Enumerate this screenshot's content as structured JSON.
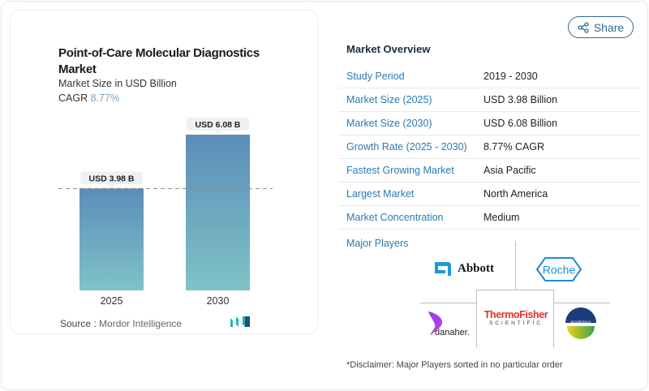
{
  "chart_data": {
    "type": "bar",
    "title": "Point-of-Care Molecular Diagnostics Market",
    "subtitle": "Market Size in USD Billion",
    "cagr_label": "CAGR",
    "cagr_value": "8.77%",
    "categories": [
      "2025",
      "2030"
    ],
    "values": [
      3.98,
      6.08
    ],
    "data_labels": [
      "USD 3.98 B",
      "USD 6.08 B"
    ],
    "bar_colors": [
      "#5b8db8",
      "#7fc3c7"
    ],
    "reference_line": "dashed at 2025 value"
  },
  "source": {
    "label": "Source :",
    "value": "Mordor Intelligence"
  },
  "share_label": "Share",
  "overview": {
    "title": "Market Overview",
    "rows": [
      {
        "k": "Study Period",
        "v": "2019 - 2030"
      },
      {
        "k": "Market Size (2025)",
        "v": "USD 3.98 Billion"
      },
      {
        "k": "Market Size (2030)",
        "v": "USD 6.08 Billion"
      },
      {
        "k": "Growth Rate (2025 - 2030)",
        "v": "8.77% CAGR"
      },
      {
        "k": "Fastest Growing Market",
        "v": "Asia Pacific"
      },
      {
        "k": "Largest Market",
        "v": "North America"
      },
      {
        "k": "Market Concentration",
        "v": "Medium"
      }
    ]
  },
  "players": {
    "title": "Major Players",
    "logos": [
      "Abbott",
      "Roche",
      "danaher",
      "ThermoFisher",
      "SCIENTIFIC",
      "BIOMÉRIEUX"
    ]
  },
  "disclaimer": "*Disclaimer: Major Players sorted in no particular order"
}
